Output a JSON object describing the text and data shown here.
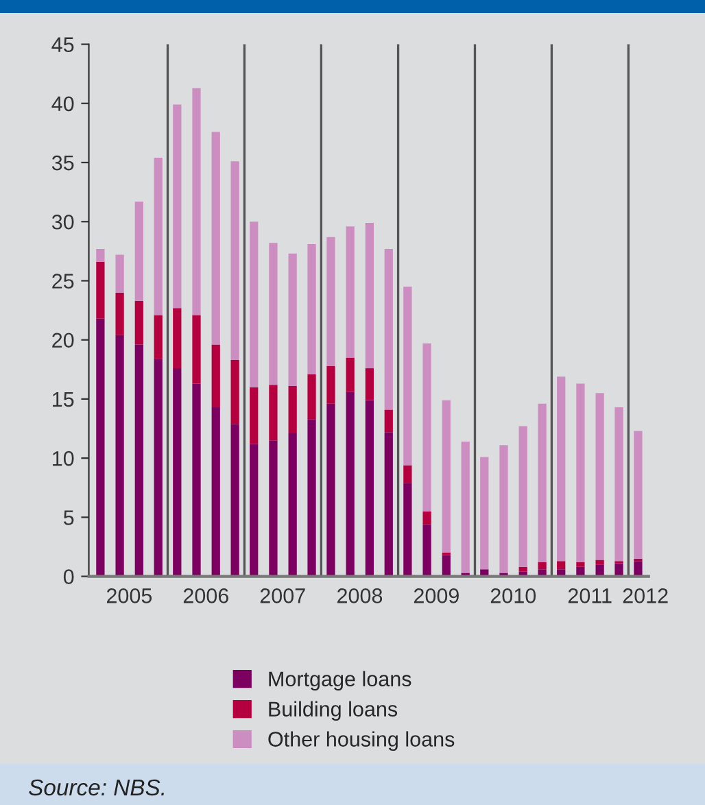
{
  "chart_data": {
    "type": "bar",
    "stacked": true,
    "x": [
      "2005-03",
      "2005-06",
      "2005-09",
      "2005-12",
      "2006-03",
      "2006-06",
      "2006-09",
      "2006-12",
      "2007-03",
      "2007-06",
      "2007-09",
      "2007-12",
      "2008-03",
      "2008-06",
      "2008-09",
      "2008-12",
      "2009-03",
      "2009-06",
      "2009-09",
      "2009-12",
      "2010-03",
      "2010-06",
      "2010-09",
      "2010-12",
      "2011-03",
      "2011-06",
      "2011-09",
      "2011-12",
      "2012-03"
    ],
    "series": [
      {
        "name": "Mortgage loans",
        "color": "#7b0060",
        "values": [
          21.8,
          20.4,
          19.6,
          18.4,
          17.6,
          16.3,
          14.3,
          12.9,
          11.2,
          11.5,
          12.1,
          13.3,
          14.6,
          15.6,
          14.9,
          12.2,
          7.9,
          4.4,
          1.8,
          0.3,
          0.6,
          0.3,
          0.4,
          0.6,
          0.6,
          0.8,
          1.0,
          1.1,
          1.3
        ]
      },
      {
        "name": "Building loans",
        "color": "#b5003f",
        "values": [
          4.8,
          3.6,
          3.7,
          3.7,
          5.1,
          5.8,
          5.3,
          5.4,
          4.8,
          4.7,
          4.0,
          3.8,
          3.2,
          2.9,
          2.7,
          1.9,
          1.5,
          1.1,
          0.2,
          0.0,
          0.0,
          0.0,
          0.4,
          0.6,
          0.7,
          0.4,
          0.4,
          0.2,
          0.2
        ]
      },
      {
        "name": "Other housing loans",
        "color": "#cc8ec0",
        "values": [
          1.1,
          3.2,
          8.4,
          13.3,
          17.2,
          19.2,
          18.0,
          16.8,
          14.0,
          12.0,
          11.2,
          11.0,
          10.9,
          11.1,
          12.3,
          13.6,
          15.1,
          14.2,
          12.9,
          11.1,
          9.5,
          10.8,
          11.9,
          13.4,
          15.6,
          15.1,
          14.1,
          13.0,
          10.8
        ]
      }
    ],
    "xlim": [
      "2005-01-05",
      "2012-04-20"
    ],
    "xticks": [
      {
        "value": "2005-07-16",
        "label": "2005"
      },
      {
        "value": "2006-07-16",
        "label": "2006"
      },
      {
        "value": "2007-07-16",
        "label": "2007"
      },
      {
        "value": "2008-07-16",
        "label": "2008"
      },
      {
        "value": "2009-07-16",
        "label": "2009"
      },
      {
        "value": "2010-07-16",
        "label": "2010"
      },
      {
        "value": "2011-07-16",
        "label": "2011"
      },
      {
        "value": "2012-04-05",
        "label": "2012"
      }
    ],
    "ylim": [
      0,
      45
    ],
    "yticks": [
      0,
      5,
      10,
      15,
      20,
      25,
      30,
      35,
      40,
      45
    ],
    "ref_lines": [
      {
        "axis": "x",
        "value": "2006-01-15",
        "color": "#555555"
      },
      {
        "axis": "x",
        "value": "2007-01-15",
        "color": "#555555"
      },
      {
        "axis": "x",
        "value": "2008-01-15",
        "color": "#555555"
      },
      {
        "axis": "x",
        "value": "2009-01-15",
        "color": "#555555"
      },
      {
        "axis": "x",
        "value": "2010-01-15",
        "color": "#555555"
      },
      {
        "axis": "x",
        "value": "2011-01-15",
        "color": "#555555"
      },
      {
        "axis": "x",
        "value": "2012-01-15",
        "color": "#555555"
      }
    ],
    "grid": false,
    "legend": "bottom",
    "annotations": [
      "Source: NBS."
    ]
  }
}
